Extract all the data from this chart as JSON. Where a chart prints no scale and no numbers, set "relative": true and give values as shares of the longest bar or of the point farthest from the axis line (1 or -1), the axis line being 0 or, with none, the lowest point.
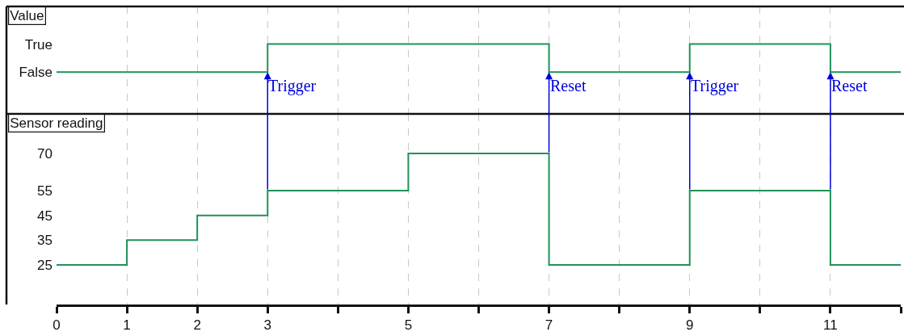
{
  "chart_data": [
    {
      "type": "step",
      "title": "Value",
      "x": [
        0,
        3,
        7,
        9,
        11,
        12
      ],
      "values": [
        0,
        1,
        0,
        1,
        0,
        0
      ],
      "color": "#1f9257",
      "xlim": [
        0,
        12
      ],
      "xticks": [
        0,
        1,
        2,
        3,
        {
          "value": 4,
          "label": null
        },
        5,
        {
          "value": 6,
          "label": null
        },
        7,
        {
          "value": 8,
          "label": null
        },
        9,
        {
          "value": 10,
          "label": null
        },
        11,
        {
          "value": 12,
          "label": null
        }
      ],
      "relative": true,
      "y_categories": [
        "True",
        "False"
      ],
      "grid": "x",
      "tick_labels": "y",
      "line_style": "solid",
      "marker": "none",
      "annotations": [
        {
          "text": "Trigger",
          "x": 3,
          "y": 0
        },
        {
          "text": "Reset",
          "x": 7,
          "y": 0
        },
        {
          "text": "Trigger",
          "x": 9,
          "y": 0
        },
        {
          "text": "Reset",
          "x": 11,
          "y": 0
        }
      ]
    },
    {
      "type": "step",
      "title": "Sensor reading",
      "x": [
        0,
        1,
        2,
        3,
        5,
        7,
        9,
        11,
        12
      ],
      "values": [
        25,
        35,
        45,
        55,
        70,
        25,
        55,
        25,
        25
      ],
      "color": "#1f9257",
      "xlim": [
        0,
        12
      ],
      "xticks": [
        0,
        1,
        2,
        3,
        {
          "value": 4,
          "label": null
        },
        5,
        {
          "value": 6,
          "label": null
        },
        7,
        {
          "value": 8,
          "label": null
        },
        9,
        {
          "value": 10,
          "label": null
        },
        11,
        {
          "value": 12,
          "label": null
        }
      ],
      "ylim": [
        9,
        86
      ],
      "yticks": [
        25,
        35,
        45,
        55,
        70
      ],
      "grid": "x",
      "line_style": "solid",
      "marker": "none"
    }
  ]
}
